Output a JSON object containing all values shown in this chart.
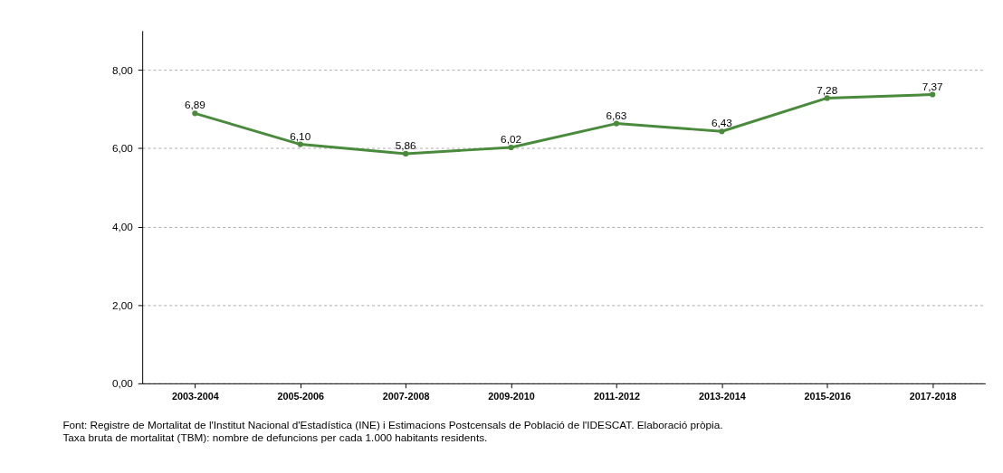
{
  "chart_data": {
    "type": "line",
    "categories": [
      "2003-2004",
      "2005-2006",
      "2007-2008",
      "2009-2010",
      "2011-2012",
      "2013-2014",
      "2015-2016",
      "2017-2018"
    ],
    "series": [
      {
        "color": "#4a8a3c",
        "values": [
          6.89,
          6.1,
          5.86,
          6.02,
          6.63,
          6.43,
          7.28,
          7.37
        ],
        "value_labels": [
          "6,89",
          "6,10",
          "5,86",
          "6,02",
          "6,63",
          "6,43",
          "7,28",
          "7,37"
        ]
      }
    ],
    "ylim": [
      0,
      9
    ],
    "yticks": [
      {
        "value": 0,
        "label": "0,00"
      },
      {
        "value": 2,
        "label": "2,00"
      },
      {
        "value": 4,
        "label": "4,00"
      },
      {
        "value": 6,
        "label": "6,00"
      },
      {
        "value": 8,
        "label": "8,00"
      }
    ],
    "grid": "y",
    "marker": "circle",
    "line_style": "solid",
    "annotations": [
      "Font: Registre de Mortalitat de l'Institut Nacional d'Estadística (INE) i Estimacions Postcensals de Població de l'IDESCAT. Elaboració pròpia.",
      "Taxa bruta de mortalitat (TBM): nombre de defuncions per cada 1.000 habitants residents."
    ]
  }
}
